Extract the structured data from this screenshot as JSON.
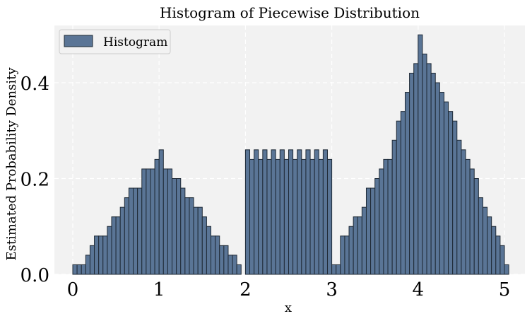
{
  "chart_data": {
    "type": "bar",
    "title": "Histogram of Piecewise Distribution",
    "xlabel": "x",
    "ylabel": "Estimated Probability Density",
    "xlim": [
      -0.2,
      5.25
    ],
    "ylim": [
      0,
      0.5
    ],
    "xticks": [
      0,
      1,
      2,
      3,
      4,
      5
    ],
    "yticks": [
      0.0,
      0.2,
      0.4
    ],
    "xtick_labels": [
      "0",
      "1",
      "2",
      "3",
      "4",
      "5"
    ],
    "ytick_labels": [
      "0.0",
      "0.2",
      "0.4"
    ],
    "grid": true,
    "legend": {
      "position": "top-left",
      "entries": [
        "Histogram"
      ]
    },
    "bin_width": 0.05,
    "bins": [
      {
        "x": 0.0,
        "y": 0.02
      },
      {
        "x": 0.05,
        "y": 0.02
      },
      {
        "x": 0.1,
        "y": 0.02
      },
      {
        "x": 0.15,
        "y": 0.04
      },
      {
        "x": 0.2,
        "y": 0.06
      },
      {
        "x": 0.25,
        "y": 0.08
      },
      {
        "x": 0.3,
        "y": 0.08
      },
      {
        "x": 0.35,
        "y": 0.08
      },
      {
        "x": 0.4,
        "y": 0.1
      },
      {
        "x": 0.45,
        "y": 0.12
      },
      {
        "x": 0.5,
        "y": 0.12
      },
      {
        "x": 0.55,
        "y": 0.14
      },
      {
        "x": 0.6,
        "y": 0.16
      },
      {
        "x": 0.65,
        "y": 0.18
      },
      {
        "x": 0.7,
        "y": 0.18
      },
      {
        "x": 0.75,
        "y": 0.18
      },
      {
        "x": 0.8,
        "y": 0.22
      },
      {
        "x": 0.85,
        "y": 0.22
      },
      {
        "x": 0.9,
        "y": 0.22
      },
      {
        "x": 0.95,
        "y": 0.24
      },
      {
        "x": 1.0,
        "y": 0.26
      },
      {
        "x": 1.05,
        "y": 0.22
      },
      {
        "x": 1.1,
        "y": 0.22
      },
      {
        "x": 1.15,
        "y": 0.2
      },
      {
        "x": 1.2,
        "y": 0.2
      },
      {
        "x": 1.25,
        "y": 0.18
      },
      {
        "x": 1.3,
        "y": 0.16
      },
      {
        "x": 1.35,
        "y": 0.16
      },
      {
        "x": 1.4,
        "y": 0.14
      },
      {
        "x": 1.45,
        "y": 0.14
      },
      {
        "x": 1.5,
        "y": 0.12
      },
      {
        "x": 1.55,
        "y": 0.1
      },
      {
        "x": 1.6,
        "y": 0.08
      },
      {
        "x": 1.65,
        "y": 0.08
      },
      {
        "x": 1.7,
        "y": 0.06
      },
      {
        "x": 1.75,
        "y": 0.06
      },
      {
        "x": 1.8,
        "y": 0.04
      },
      {
        "x": 1.85,
        "y": 0.04
      },
      {
        "x": 1.9,
        "y": 0.02
      },
      {
        "x": 2.0,
        "y": 0.26
      },
      {
        "x": 2.05,
        "y": 0.24
      },
      {
        "x": 2.1,
        "y": 0.26
      },
      {
        "x": 2.15,
        "y": 0.24
      },
      {
        "x": 2.2,
        "y": 0.26
      },
      {
        "x": 2.25,
        "y": 0.24
      },
      {
        "x": 2.3,
        "y": 0.26
      },
      {
        "x": 2.35,
        "y": 0.24
      },
      {
        "x": 2.4,
        "y": 0.26
      },
      {
        "x": 2.45,
        "y": 0.24
      },
      {
        "x": 2.5,
        "y": 0.26
      },
      {
        "x": 2.55,
        "y": 0.24
      },
      {
        "x": 2.6,
        "y": 0.26
      },
      {
        "x": 2.65,
        "y": 0.24
      },
      {
        "x": 2.7,
        "y": 0.26
      },
      {
        "x": 2.75,
        "y": 0.24
      },
      {
        "x": 2.8,
        "y": 0.26
      },
      {
        "x": 2.85,
        "y": 0.24
      },
      {
        "x": 2.9,
        "y": 0.26
      },
      {
        "x": 2.95,
        "y": 0.24
      },
      {
        "x": 3.0,
        "y": 0.02
      },
      {
        "x": 3.05,
        "y": 0.02
      },
      {
        "x": 3.1,
        "y": 0.08
      },
      {
        "x": 3.15,
        "y": 0.08
      },
      {
        "x": 3.2,
        "y": 0.1
      },
      {
        "x": 3.25,
        "y": 0.12
      },
      {
        "x": 3.3,
        "y": 0.12
      },
      {
        "x": 3.35,
        "y": 0.14
      },
      {
        "x": 3.4,
        "y": 0.18
      },
      {
        "x": 3.45,
        "y": 0.18
      },
      {
        "x": 3.5,
        "y": 0.2
      },
      {
        "x": 3.55,
        "y": 0.22
      },
      {
        "x": 3.6,
        "y": 0.24
      },
      {
        "x": 3.65,
        "y": 0.24
      },
      {
        "x": 3.7,
        "y": 0.28
      },
      {
        "x": 3.75,
        "y": 0.32
      },
      {
        "x": 3.8,
        "y": 0.34
      },
      {
        "x": 3.85,
        "y": 0.38
      },
      {
        "x": 3.9,
        "y": 0.42
      },
      {
        "x": 3.95,
        "y": 0.44
      },
      {
        "x": 4.0,
        "y": 0.5
      },
      {
        "x": 4.05,
        "y": 0.46
      },
      {
        "x": 4.1,
        "y": 0.44
      },
      {
        "x": 4.15,
        "y": 0.42
      },
      {
        "x": 4.2,
        "y": 0.4
      },
      {
        "x": 4.25,
        "y": 0.38
      },
      {
        "x": 4.3,
        "y": 0.36
      },
      {
        "x": 4.35,
        "y": 0.34
      },
      {
        "x": 4.4,
        "y": 0.32
      },
      {
        "x": 4.45,
        "y": 0.28
      },
      {
        "x": 4.5,
        "y": 0.26
      },
      {
        "x": 4.55,
        "y": 0.24
      },
      {
        "x": 4.6,
        "y": 0.22
      },
      {
        "x": 4.65,
        "y": 0.2
      },
      {
        "x": 4.7,
        "y": 0.16
      },
      {
        "x": 4.75,
        "y": 0.14
      },
      {
        "x": 4.8,
        "y": 0.12
      },
      {
        "x": 4.85,
        "y": 0.1
      },
      {
        "x": 4.9,
        "y": 0.08
      },
      {
        "x": 4.95,
        "y": 0.06
      },
      {
        "x": 5.0,
        "y": 0.02
      }
    ],
    "colors": {
      "bar_fill": "#5a7596",
      "bar_edge": "#1f2a36",
      "plot_background": "#f2f2f2",
      "grid": "#ffffff"
    }
  }
}
